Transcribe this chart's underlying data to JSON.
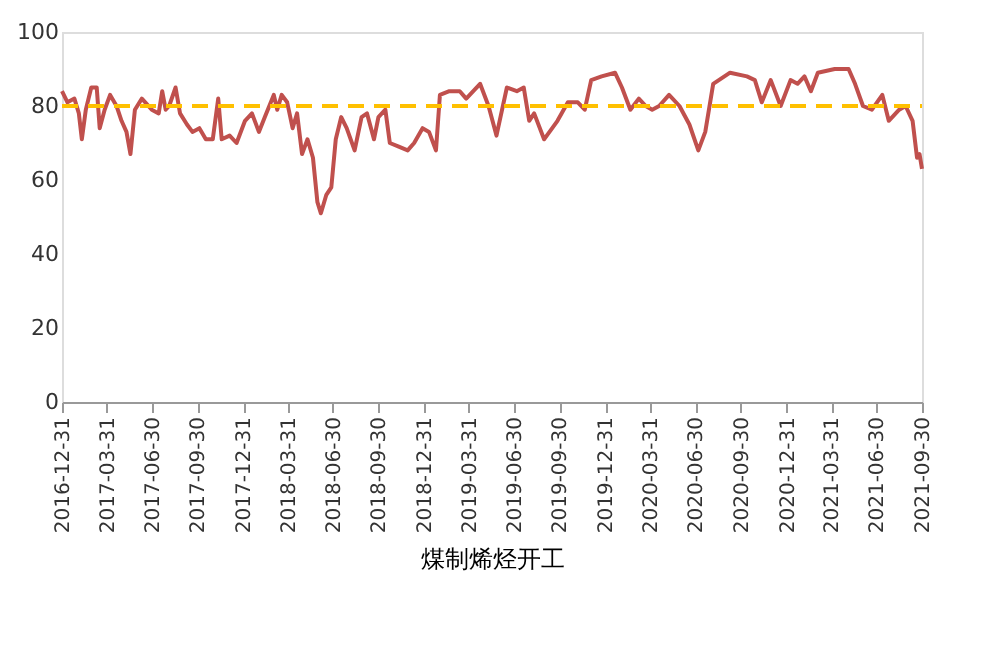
{
  "chart_data": {
    "type": "line",
    "xlabel": "煤制烯烃开工",
    "x": [
      "2016-12-31",
      "2017-01-11",
      "2017-01-25",
      "2017-02-03",
      "2017-02-09",
      "2017-02-17",
      "2017-02-28",
      "2017-03-11",
      "2017-03-17",
      "2017-03-27",
      "2017-04-07",
      "2017-04-20",
      "2017-04-30",
      "2017-05-10",
      "2017-05-18",
      "2017-05-27",
      "2017-06-10",
      "2017-06-30",
      "2017-07-14",
      "2017-07-21",
      "2017-07-28",
      "2017-08-04",
      "2017-08-17",
      "2017-08-26",
      "2017-09-09",
      "2017-09-20",
      "2017-10-04",
      "2017-10-17",
      "2017-10-31",
      "2017-11-11",
      "2017-11-18",
      "2017-12-04",
      "2017-12-18",
      "2018-01-04",
      "2018-01-18",
      "2018-02-01",
      "2018-02-13",
      "2018-03-03",
      "2018-03-10",
      "2018-03-19",
      "2018-03-30",
      "2018-04-10",
      "2018-04-19",
      "2018-04-29",
      "2018-05-10",
      "2018-05-21",
      "2018-05-30",
      "2018-06-06",
      "2018-06-17",
      "2018-06-27",
      "2018-07-06",
      "2018-07-17",
      "2018-07-28",
      "2018-08-13",
      "2018-08-27",
      "2018-09-07",
      "2018-09-21",
      "2018-09-30",
      "2018-10-14",
      "2018-10-23",
      "2018-11-10",
      "2018-11-28",
      "2018-12-11",
      "2018-12-28",
      "2019-01-10",
      "2019-01-24",
      "2019-02-01",
      "2019-02-20",
      "2019-03-13",
      "2019-03-26",
      "2019-04-23",
      "2019-05-10",
      "2019-05-26",
      "2019-06-16",
      "2019-07-06",
      "2019-07-20",
      "2019-07-31",
      "2019-08-10",
      "2019-08-30",
      "2019-09-26",
      "2019-10-17",
      "2019-11-06",
      "2019-11-20",
      "2019-12-03",
      "2019-12-24",
      "2020-01-20",
      "2020-02-03",
      "2020-02-20",
      "2020-03-08",
      "2020-03-22",
      "2020-04-04",
      "2020-04-18",
      "2020-05-08",
      "2020-05-29",
      "2020-06-18",
      "2020-07-06",
      "2020-07-20",
      "2020-08-05",
      "2020-09-08",
      "2020-10-12",
      "2020-10-28",
      "2020-11-11",
      "2020-11-29",
      "2020-12-19",
      "2021-01-08",
      "2021-01-22",
      "2021-02-05",
      "2021-02-18",
      "2021-03-04",
      "2021-04-07",
      "2021-05-05",
      "2021-05-18",
      "2021-06-03",
      "2021-06-21",
      "2021-07-12",
      "2021-07-25",
      "2021-08-15",
      "2021-08-28",
      "2021-09-11",
      "2021-09-20",
      "2021-09-25",
      "2021-09-30"
    ],
    "series": [
      {
        "color": "#c0504d",
        "values": [
          84,
          81,
          82,
          78,
          71,
          79,
          85,
          85,
          74,
          79,
          83,
          80,
          76,
          73,
          67,
          79,
          82,
          79,
          78,
          84,
          79,
          80,
          85,
          78,
          75,
          73,
          74,
          71,
          71,
          82,
          71,
          72,
          70,
          76,
          78,
          73,
          77,
          83,
          79,
          83,
          81,
          74,
          78,
          67,
          71,
          66,
          54,
          51,
          56,
          58,
          71,
          77,
          74,
          68,
          77,
          78,
          71,
          77,
          79,
          70,
          69,
          68,
          70,
          74,
          73,
          68,
          83,
          84,
          84,
          82,
          86,
          80,
          72,
          85,
          84,
          85,
          76,
          78,
          71,
          76,
          81,
          81,
          79,
          87,
          88,
          89,
          85,
          79,
          82,
          80,
          79,
          80,
          83,
          80,
          75,
          68,
          73,
          86,
          89,
          88,
          87,
          81,
          87,
          80,
          87,
          86,
          88,
          84,
          89,
          90,
          90,
          86,
          80,
          79,
          83,
          76,
          79,
          80,
          76,
          66,
          67,
          63
        ]
      }
    ],
    "xlim": [
      "2016-12-31",
      "2021-09-30"
    ],
    "xticks": [
      "2016-12-31",
      "2017-03-31",
      "2017-06-30",
      "2017-09-30",
      "2017-12-31",
      "2018-03-31",
      "2018-06-30",
      "2018-09-30",
      "2018-12-31",
      "2019-03-31",
      "2019-06-30",
      "2019-09-30",
      "2019-12-31",
      "2020-03-31",
      "2020-06-30",
      "2020-09-30",
      "2020-12-31",
      "2021-03-31",
      "2021-06-30",
      "2021-09-30"
    ],
    "ylim": [
      0,
      100
    ],
    "yticks": [
      0,
      20,
      40,
      60,
      80,
      100
    ],
    "ref_lines": [
      {
        "axis": "y",
        "value": 80,
        "color": "#ffc000",
        "line_style": "dashed"
      }
    ],
    "grid": false,
    "marker": "none",
    "line_style": "solid"
  }
}
